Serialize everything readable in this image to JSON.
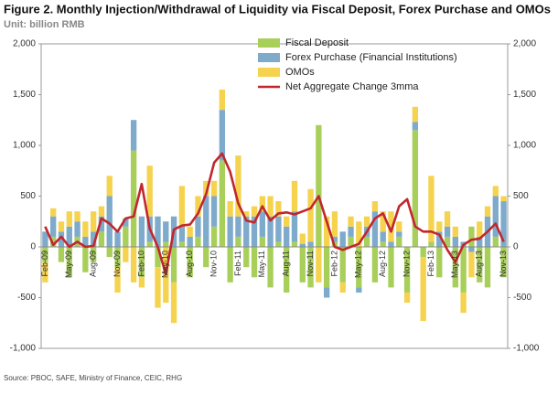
{
  "chart_data": {
    "type": "bar",
    "title": "Figure 2. Monthly Injection/Withdrawal of Liquidity via Fiscal Deposit, Forex Purchase and OMOs",
    "subtitle": "Unit: billion RMB",
    "source": "Source: PBOC, SAFE, Ministry of Finance, CEIC, RHG",
    "categories": [
      "Feb-09",
      null,
      null,
      "May-09",
      null,
      null,
      "Aug-09",
      null,
      null,
      "Nov-09",
      null,
      null,
      "Feb-10",
      null,
      null,
      "May-10",
      null,
      null,
      "Aug-10",
      null,
      null,
      "Nov-10",
      null,
      null,
      "Feb-11",
      null,
      null,
      "May-11",
      null,
      null,
      "Aug-11",
      null,
      null,
      "Nov-11",
      null,
      null,
      "Feb-12",
      null,
      null,
      "May-12",
      null,
      null,
      "Aug-12",
      null,
      null,
      "Nov-12",
      null,
      null,
      "Feb-13",
      null,
      null,
      "May-13",
      null,
      null,
      "Aug-13",
      null,
      null,
      "Nov-13"
    ],
    "series": [
      {
        "name": "Fiscal Deposit",
        "color": "#a9cf5b",
        "values": [
          -150,
          100,
          -150,
          -300,
          100,
          -250,
          -150,
          150,
          -100,
          -200,
          200,
          950,
          -300,
          50,
          -200,
          50,
          -350,
          50,
          -300,
          100,
          -200,
          200,
          850,
          -350,
          100,
          -200,
          -300,
          100,
          -400,
          50,
          -450,
          50,
          -350,
          -400,
          1200,
          -400,
          50,
          -350,
          100,
          -400,
          100,
          -350,
          50,
          -400,
          100,
          -450,
          1150,
          -100,
          50,
          -300,
          100,
          -400,
          -450,
          200,
          -350,
          -400,
          100,
          -300
        ]
      },
      {
        "name": "Forex Purchase (Financial Institutions)",
        "color": "#7eaacb",
        "values": [
          150,
          200,
          150,
          200,
          150,
          100,
          150,
          150,
          500,
          150,
          80,
          300,
          300,
          250,
          300,
          200,
          300,
          150,
          100,
          200,
          500,
          300,
          500,
          300,
          200,
          300,
          300,
          250,
          300,
          250,
          200,
          300,
          30,
          50,
          0,
          -100,
          50,
          150,
          100,
          -50,
          100,
          350,
          100,
          50,
          50,
          0,
          80,
          0,
          0,
          150,
          100,
          100,
          50,
          -50,
          100,
          300,
          400,
          450
        ]
      },
      {
        "name": "OMOs",
        "color": "#f5d34f",
        "values": [
          -200,
          80,
          100,
          150,
          100,
          150,
          200,
          100,
          200,
          -250,
          -150,
          -350,
          -100,
          500,
          -400,
          -550,
          -400,
          400,
          100,
          200,
          150,
          150,
          200,
          150,
          600,
          50,
          100,
          150,
          200,
          150,
          100,
          300,
          100,
          520,
          -350,
          300,
          250,
          -100,
          100,
          250,
          100,
          100,
          200,
          300,
          100,
          -100,
          150,
          -630,
          650,
          100,
          150,
          100,
          -200,
          -250,
          150,
          100,
          100,
          50
        ]
      },
      {
        "name": "Net Aggregate Change 3mma",
        "type": "line",
        "color": "#c1272d",
        "values": [
          200,
          20,
          100,
          0,
          50,
          0,
          10,
          280,
          230,
          150,
          280,
          300,
          620,
          180,
          0,
          -270,
          170,
          210,
          220,
          330,
          520,
          830,
          920,
          740,
          430,
          260,
          240,
          400,
          260,
          330,
          340,
          320,
          350,
          380,
          500,
          250,
          0,
          -30,
          0,
          30,
          150,
          280,
          330,
          150,
          400,
          470,
          200,
          150,
          150,
          120,
          -30,
          -150,
          20,
          70,
          80,
          150,
          230,
          50
        ]
      }
    ],
    "ylim": [
      -1000,
      2000
    ],
    "yticks": [
      {
        "value": -1000,
        "label": "-1,000"
      },
      -500,
      0,
      500,
      {
        "value": 1000,
        "label": "1,000"
      },
      {
        "value": 1500,
        "label": "1,500"
      },
      {
        "value": 2000,
        "label": "2,000"
      }
    ],
    "y2lim": [
      -1000,
      2000
    ],
    "y2ticks": [
      {
        "value": -1000,
        "label": "-1,000"
      },
      -500,
      0,
      500,
      {
        "value": 1000,
        "label": "1,000"
      },
      {
        "value": 1500,
        "label": "1,500"
      },
      {
        "value": 2000,
        "label": "2,000"
      }
    ],
    "legend": "top"
  }
}
